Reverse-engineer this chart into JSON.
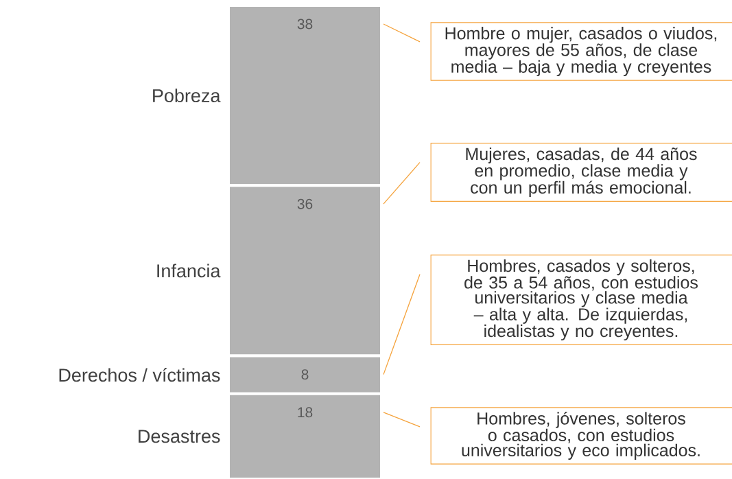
{
  "chart_data": {
    "type": "bar",
    "stacked": true,
    "categories": [
      null
    ],
    "data_labels": true,
    "legend": false,
    "series": [
      {
        "name": "Desastres",
        "color": "#b3b3b3",
        "values": [
          18
        ]
      },
      {
        "name": "Derechos / víctimas",
        "color": "#b3b3b3",
        "values": [
          8
        ]
      },
      {
        "name": "Infancia",
        "color": "#b3b3b3",
        "values": [
          36
        ]
      },
      {
        "name": "Pobreza",
        "color": "#b3b3b3",
        "values": [
          38
        ]
      }
    ],
    "annotations": [
      "Hombre o mujer, casados o viudos, mayores de 55 años, de clase media – baja y media y creyentes",
      "Mujeres, casadas, de 44 años en promedio, clase media y con un perfil más emocional.",
      "Hombres, casados y solteros, de 35 a 54 años, con estudios universitarios y clase media – alta y alta. De izquierdas, idealistas y no creyentes.",
      "Hombres, jóvenes, solteros o casados, con estudios universitarios y eco implicados."
    ]
  }
}
